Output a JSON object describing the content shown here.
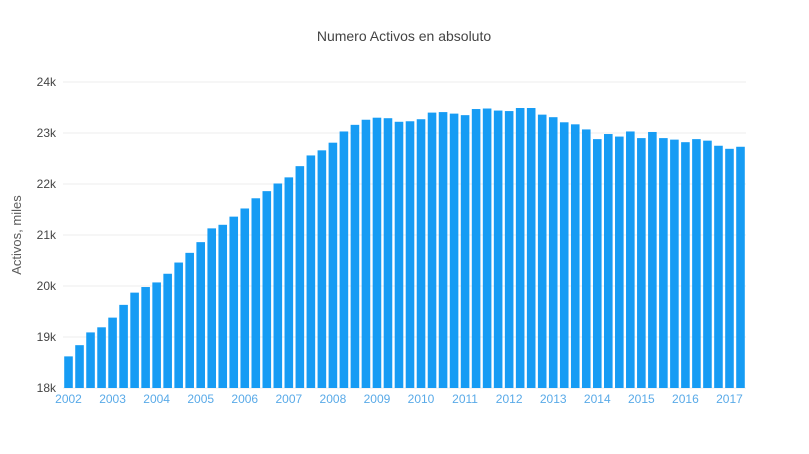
{
  "chart_data": {
    "type": "bar",
    "title": "Numero Activos en absoluto",
    "xlabel": "",
    "ylabel": "Activos, miles",
    "series_name": "Activos",
    "categories": [
      "2002T1",
      "2002T2",
      "2002T3",
      "2002T4",
      "2003T1",
      "2003T2",
      "2003T3",
      "2003T4",
      "2004T1",
      "2004T2",
      "2004T3",
      "2004T4",
      "2005T1",
      "2005T2",
      "2005T3",
      "2005T4",
      "2006T1",
      "2006T2",
      "2006T3",
      "2006T4",
      "2007T1",
      "2007T2",
      "2007T3",
      "2007T4",
      "2008T1",
      "2008T2",
      "2008T3",
      "2008T4",
      "2009T1",
      "2009T2",
      "2009T3",
      "2009T4",
      "2010T1",
      "2010T2",
      "2010T3",
      "2010T4",
      "2011T1",
      "2011T2",
      "2011T3",
      "2011T4",
      "2012T1",
      "2012T2",
      "2012T3",
      "2012T4",
      "2013T1",
      "2013T2",
      "2013T3",
      "2013T4",
      "2014T1",
      "2014T2",
      "2014T3",
      "2014T4",
      "2015T1",
      "2015T2",
      "2015T3",
      "2015T4",
      "2016T1",
      "2016T2",
      "2016T3",
      "2016T4",
      "2017T1",
      "2017T2"
    ],
    "values": [
      18620,
      18840,
      19090,
      19190,
      19380,
      19630,
      19870,
      19980,
      20070,
      20240,
      20460,
      20650,
      20860,
      21130,
      21200,
      21360,
      21520,
      21720,
      21860,
      22010,
      22130,
      22350,
      22560,
      22660,
      22810,
      23030,
      23160,
      23260,
      23300,
      23290,
      23220,
      23230,
      23270,
      23400,
      23410,
      23380,
      23350,
      23470,
      23480,
      23440,
      23430,
      23490,
      23490,
      23360,
      23310,
      23210,
      23170,
      23070,
      22880,
      22980,
      22930,
      23030,
      22900,
      23020,
      22900,
      22870,
      22820,
      22880,
      22850,
      22750,
      22690,
      22730
    ],
    "ylim": [
      18000,
      24000
    ],
    "ytick_step": 1000,
    "ytick_labels": [
      "18k",
      "19k",
      "20k",
      "21k",
      "22k",
      "23k",
      "24k"
    ],
    "year_ticks": [
      "2002",
      "2003",
      "2004",
      "2005",
      "2006",
      "2007",
      "2008",
      "2009",
      "2010",
      "2011",
      "2012",
      "2013",
      "2014",
      "2015",
      "2016",
      "2017"
    ],
    "grid": true,
    "legend": "none",
    "colors": {
      "bar": "#169cf4",
      "x_tick": "#59aae8",
      "y_tick": "#444444",
      "title": "#444444",
      "axis_title": "#5b5b5b",
      "grid": "#ededed",
      "background": "#ffffff"
    }
  }
}
